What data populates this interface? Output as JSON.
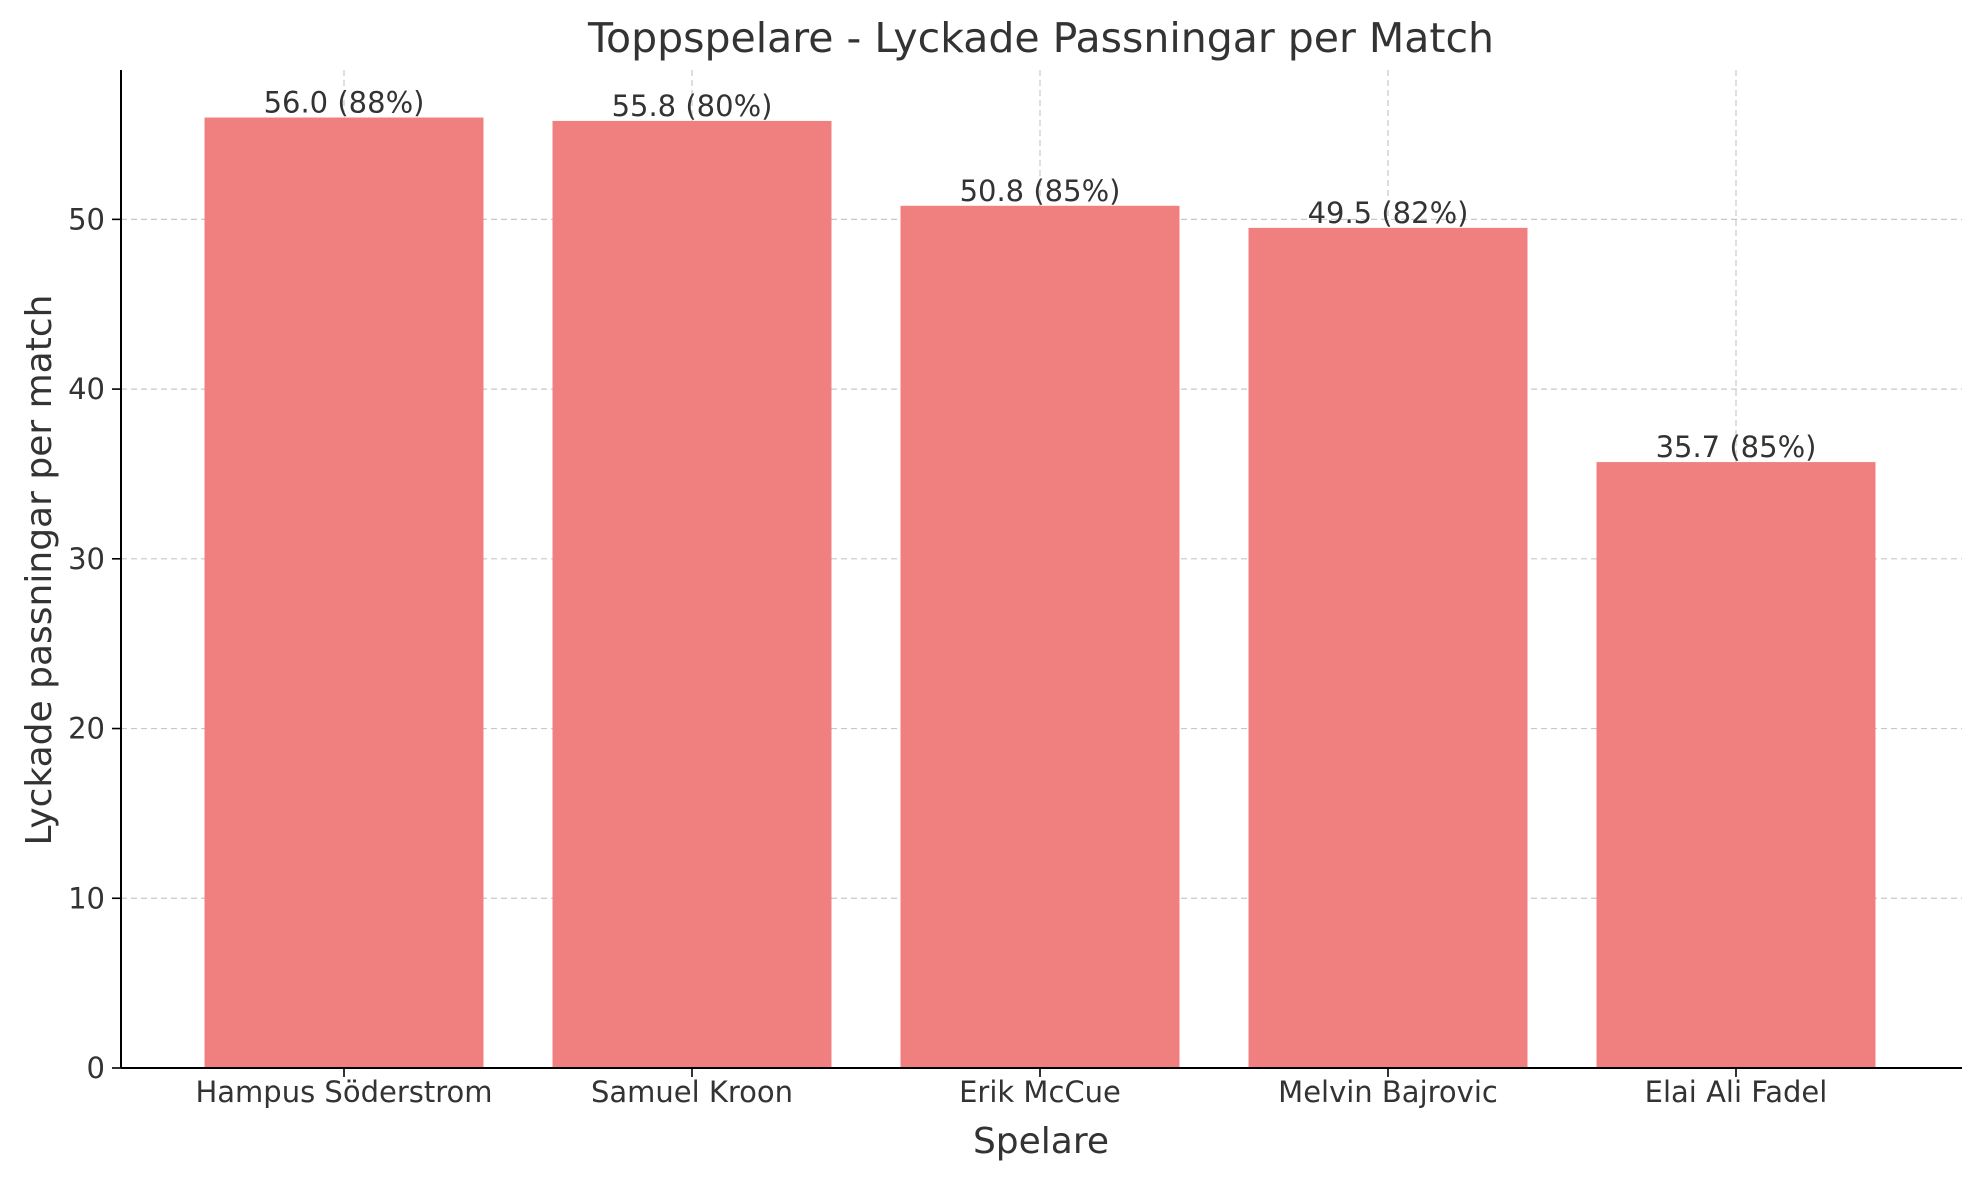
{
  "chart_data": {
    "type": "bar",
    "title": "Toppspelare - Lyckade Passningar per Match",
    "xlabel": "Spelare",
    "ylabel": "Lyckade passningar per match",
    "categories": [
      "Hampus Söderstrom",
      "Samuel Kroon",
      "Erik McCue",
      "Melvin Bajrovic",
      "Elai Ali Fadel"
    ],
    "values": [
      56.0,
      55.8,
      50.8,
      49.5,
      35.7
    ],
    "bar_labels": [
      "56.0 (88%)",
      "55.8 (80%)",
      "50.8 (85%)",
      "49.5 (82%)",
      "35.7 (85%)"
    ],
    "ylim": [
      0,
      58.8
    ],
    "yticks": [
      0,
      10,
      20,
      30,
      40,
      50
    ],
    "grid": true,
    "bar_color": "#f08080"
  }
}
